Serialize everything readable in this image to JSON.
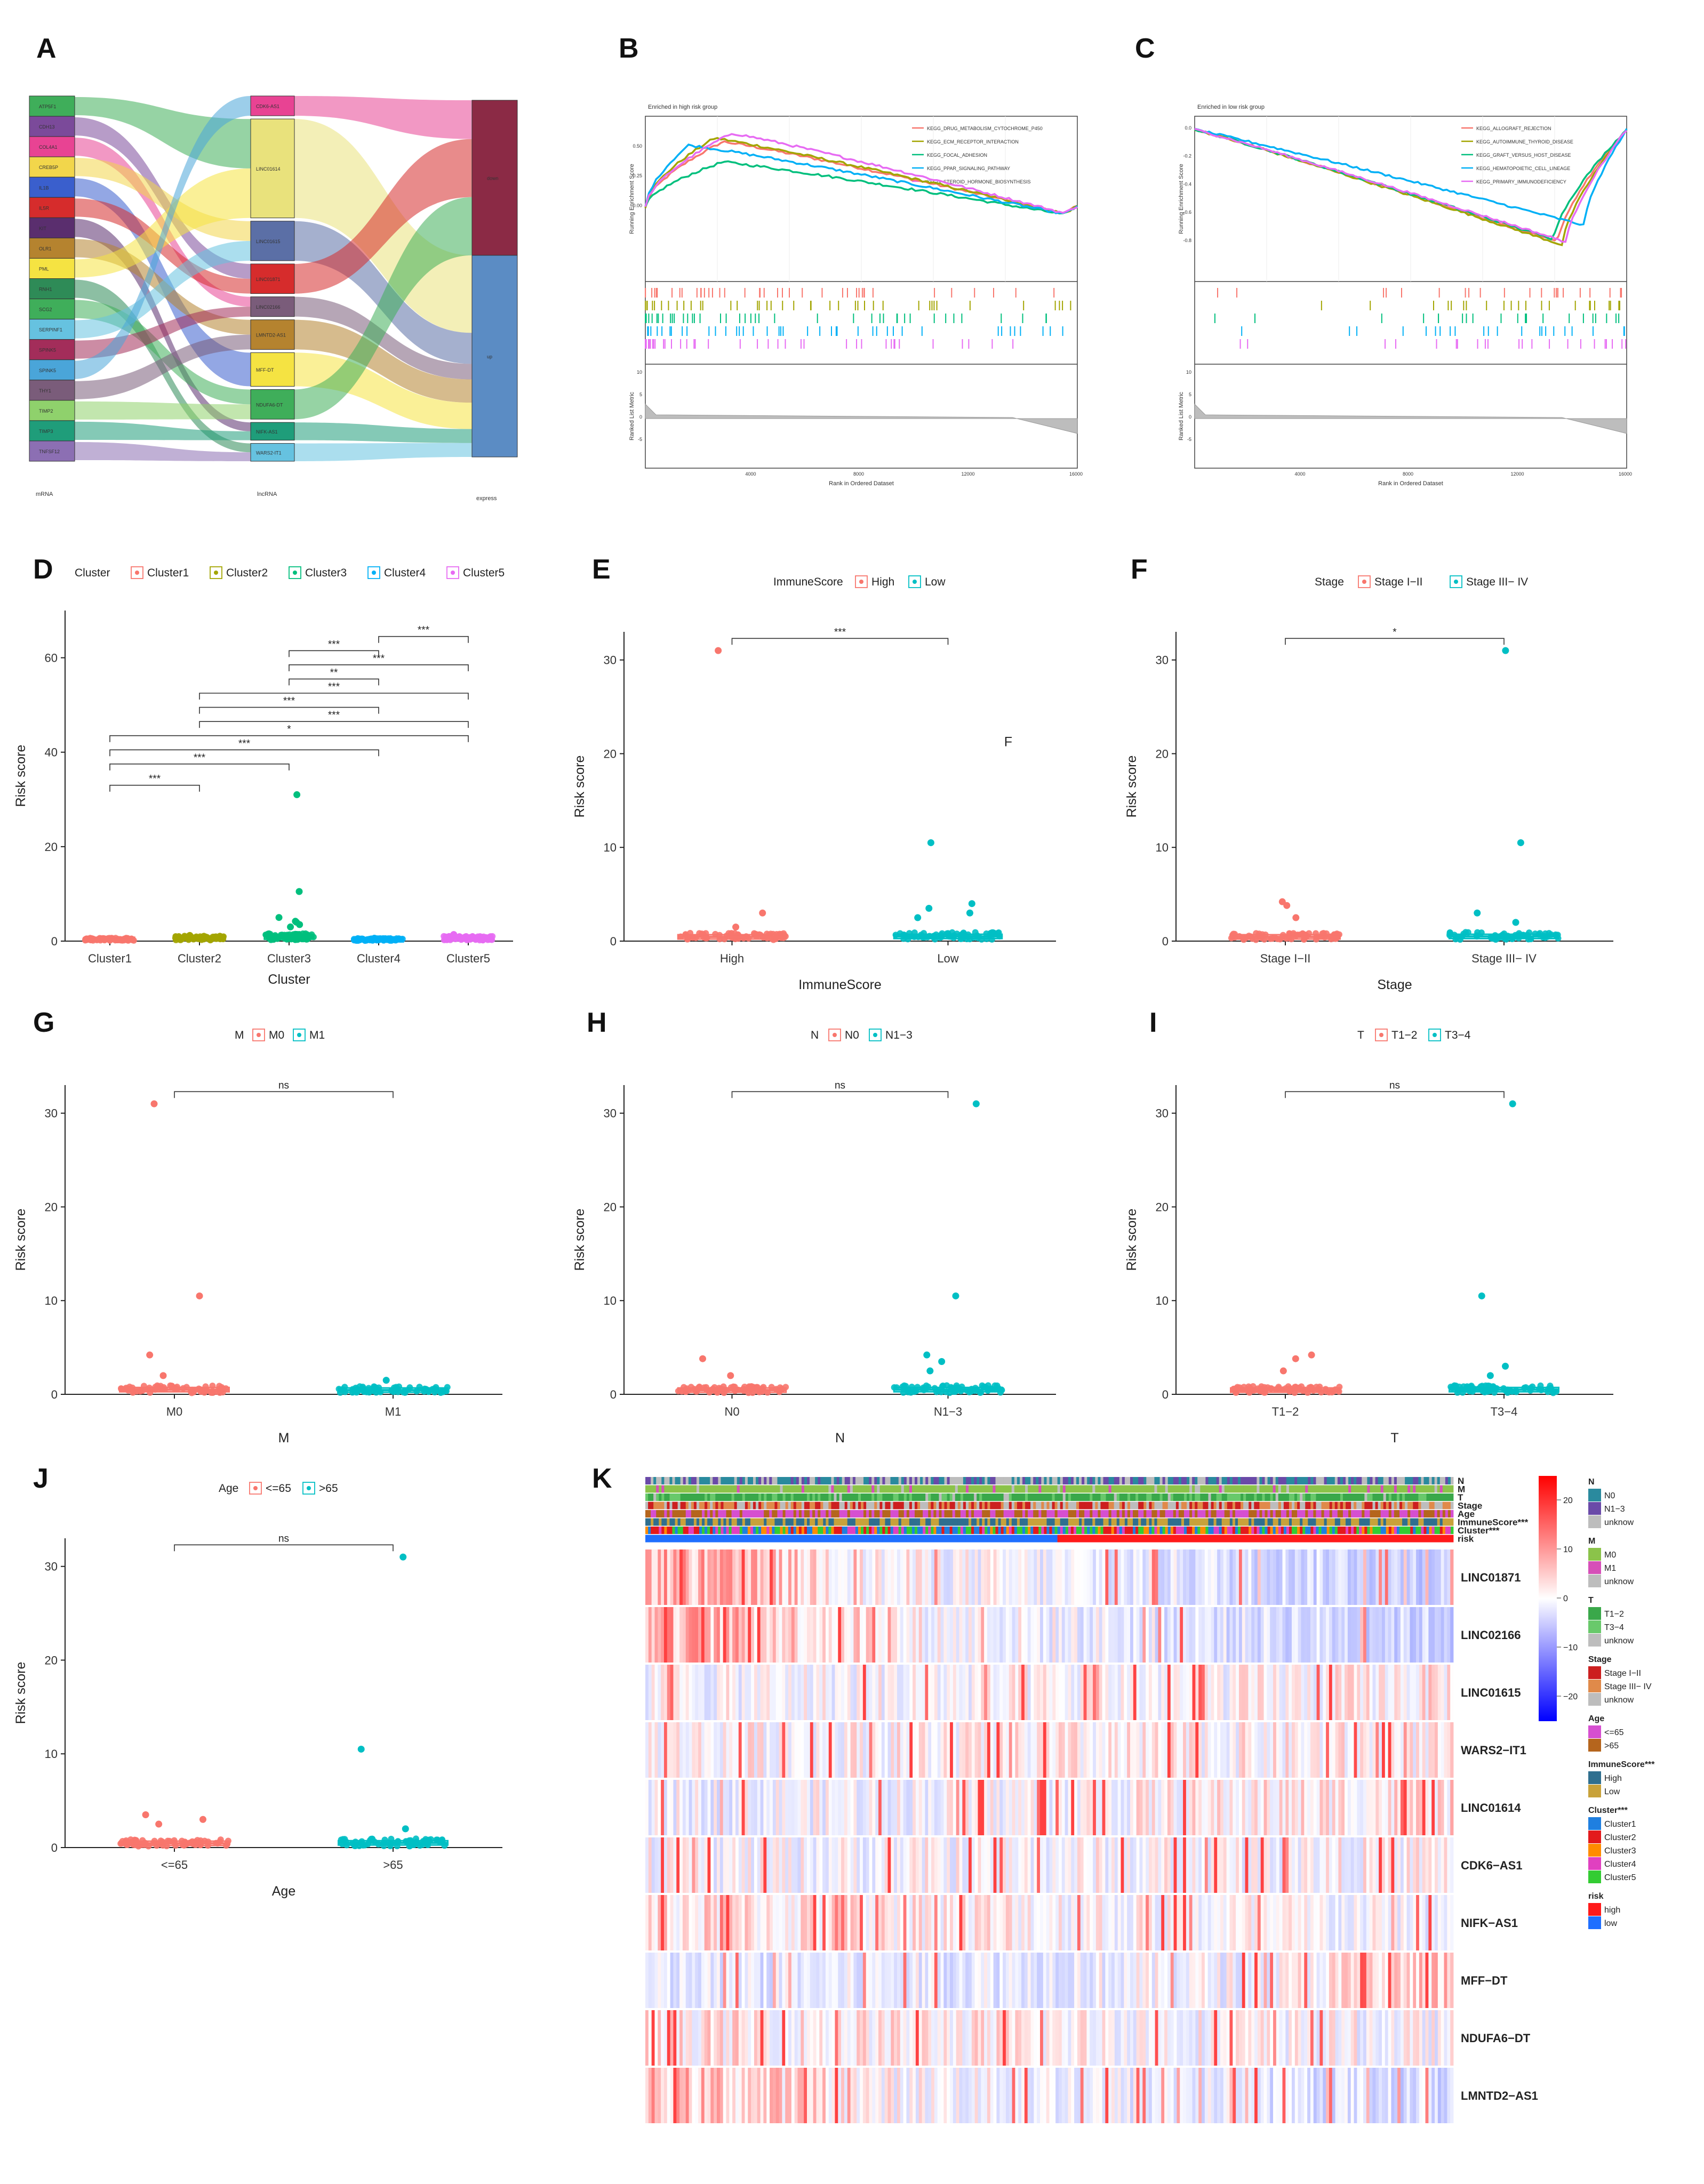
{
  "panel_letters": [
    "A",
    "B",
    "C",
    "D",
    "E",
    "F",
    "G",
    "H",
    "I",
    "J",
    "K"
  ],
  "colors": {
    "red": "#F8766D",
    "olive": "#A3A500",
    "green": "#00BF7D",
    "blue": "#00B0F6",
    "magenta": "#E76BF3",
    "teal": "#00BFC4"
  },
  "chart_data": [
    {
      "id": "A",
      "type": "sankey",
      "axis_labels": [
        "mRNA",
        "lncRNA",
        "express"
      ],
      "mrna": [
        {
          "name": "ATP5F1",
          "color": "#3fae5a"
        },
        {
          "name": "CDH13",
          "color": "#7b4a9a"
        },
        {
          "name": "COL4A1",
          "color": "#e84393"
        },
        {
          "name": "CREB5P",
          "color": "#f2d64b"
        },
        {
          "name": "IL1B",
          "color": "#3a5fcd"
        },
        {
          "name": "IL5R",
          "color": "#d62c2c"
        },
        {
          "name": "KIT",
          "color": "#5a2e6e"
        },
        {
          "name": "OLR1",
          "color": "#b5832f"
        },
        {
          "name": "PML",
          "color": "#f5e342"
        },
        {
          "name": "RNH1",
          "color": "#2e8b57"
        },
        {
          "name": "SCG2",
          "color": "#3fae5a"
        },
        {
          "name": "SERPINF1",
          "color": "#66c2e0"
        },
        {
          "name": "SPINK5",
          "color": "#a32d5a"
        },
        {
          "name": "SPINK5",
          "color": "#4aa5d9"
        },
        {
          "name": "THY1",
          "color": "#7a5c7a"
        },
        {
          "name": "TIMP2",
          "color": "#8fd16c"
        },
        {
          "name": "TIMP3",
          "color": "#1f9d7a"
        },
        {
          "name": "TNFSF12",
          "color": "#8c6fb3"
        }
      ],
      "lnc": [
        {
          "name": "CDK6-AS1",
          "color": "#e84393",
          "w": 1
        },
        {
          "name": "LINC01614",
          "color": "#e9e27c",
          "w": 5
        },
        {
          "name": "LINC01615",
          "color": "#5b6fa6",
          "w": 2
        },
        {
          "name": "LINC01871",
          "color": "#d62c2c",
          "w": 1.5
        },
        {
          "name": "LINC02166",
          "color": "#7a5c7a",
          "w": 1
        },
        {
          "name": "LMNTD2-AS1",
          "color": "#b5832f",
          "w": 1.5
        },
        {
          "name": "MFF-DT",
          "color": "#f5e342",
          "w": 1.7
        },
        {
          "name": "NDUFA6-DT",
          "color": "#3fae5a",
          "w": 1.5
        },
        {
          "name": "NIFK-AS1",
          "color": "#1f9d7a",
          "w": 0.9
        },
        {
          "name": "WARS2-IT1",
          "color": "#66c2e0",
          "w": 0.9
        }
      ],
      "express": [
        {
          "name": "down",
          "color": "#8b2a45",
          "w": 1
        },
        {
          "name": "up",
          "color": "#5b8cc4",
          "w": 1.3
        }
      ]
    },
    {
      "id": "B",
      "type": "line",
      "title": "Enriched in high risk group",
      "ylabel": "Running Enrichment Score",
      "ylabel2": "Ranked List Metric",
      "xlabel": "Rank in Ordered Dataset",
      "xticks": [
        "4000",
        "8000",
        "12000",
        "16000"
      ],
      "yticks": [
        "0.00",
        "0.25",
        "0.50"
      ],
      "yticks2": [
        "10",
        "5",
        "0",
        "-5"
      ],
      "series": [
        {
          "name": "KEGG_DRUG_METABOLISM_CYTOCHROME_P450",
          "color": "#F8766D",
          "peak": 0.55,
          "peakx": 0.18
        },
        {
          "name": "KEGG_ECM_RECEPTOR_INTERACTION",
          "color": "#A3A500",
          "peak": 0.58,
          "peakx": 0.16
        },
        {
          "name": "KEGG_FOCAL_ADHESION",
          "color": "#00BF7D",
          "peak": 0.38,
          "peakx": 0.18
        },
        {
          "name": "KEGG_PPAR_SIGNALING_PATHWAY",
          "color": "#00B0F6",
          "peak": 0.52,
          "peakx": 0.1
        },
        {
          "name": "KEGG_STEROID_HORMONE_BIOSYNTHESIS",
          "color": "#E76BF3",
          "peak": 0.62,
          "peakx": 0.2
        }
      ]
    },
    {
      "id": "C",
      "type": "line",
      "title": "Enriched in low risk group",
      "ylabel": "Running Enrichment Score",
      "ylabel2": "Ranked List Metric",
      "xlabel": "Rank in Ordered Dataset",
      "xticks": [
        "4000",
        "8000",
        "12000",
        "16000"
      ],
      "yticks": [
        "0.0",
        "-0.2",
        "-0.4",
        "-0.6",
        "-0.8"
      ],
      "yticks2": [
        "10",
        "5",
        "0",
        "-5"
      ],
      "series": [
        {
          "name": "KEGG_ALLOGRAFT_REJECTION",
          "color": "#F8766D",
          "min": -0.8,
          "minx": 0.84
        },
        {
          "name": "KEGG_AUTOIMMUNE_THYROID_DISEASE",
          "color": "#A3A500",
          "min": -0.82,
          "minx": 0.85
        },
        {
          "name": "KEGG_GRAFT_VERSUS_HOST_DISEASE",
          "color": "#00BF7D",
          "min": -0.78,
          "minx": 0.83
        },
        {
          "name": "KEGG_HEMATOPOIETIC_CELL_LINEAGE",
          "color": "#00B0F6",
          "min": -0.68,
          "minx": 0.9
        },
        {
          "name": "KEGG_PRIMARY_IMMUNODEFICIENCY",
          "color": "#E76BF3",
          "min": -0.8,
          "minx": 0.86
        }
      ]
    },
    {
      "id": "D",
      "type": "scatter",
      "legend_title": "Cluster",
      "xlabel": "Cluster",
      "ylabel": "Risk score",
      "categories": [
        "Cluster1",
        "Cluster2",
        "Cluster3",
        "Cluster4",
        "Cluster5"
      ],
      "colors": [
        "#F8766D",
        "#A3A500",
        "#00BF7D",
        "#00B0F6",
        "#E76BF3"
      ],
      "medians": [
        0.35,
        0.6,
        0.85,
        0.3,
        0.55
      ],
      "outliers": [
        [
          0.5
        ],
        [
          1.2
        ],
        [
          31,
          10.5,
          5,
          4.2,
          4,
          3.5,
          3
        ],
        [
          0.6
        ],
        [
          1.4
        ]
      ],
      "ylim": [
        0,
        70
      ],
      "yticks": [
        0,
        20,
        40,
        60
      ],
      "comparisons": [
        {
          "a": 4,
          "b": 5,
          "y": 64.5,
          "label": "***"
        },
        {
          "a": 3,
          "b": 4,
          "y": 61.5,
          "label": "***"
        },
        {
          "a": 3,
          "b": 5,
          "y": 58.5,
          "label": "***"
        },
        {
          "a": 3,
          "b": 4,
          "y": 55.5,
          "label": "**"
        },
        {
          "a": 2,
          "b": 5,
          "y": 52.5,
          "label": "***"
        },
        {
          "a": 2,
          "b": 4,
          "y": 49.5,
          "label": "***"
        },
        {
          "a": 2,
          "b": 5,
          "y": 46.5,
          "label": "***"
        },
        {
          "a": 1,
          "b": 5,
          "y": 43.5,
          "label": "*"
        },
        {
          "a": 1,
          "b": 4,
          "y": 40.5,
          "label": "***"
        },
        {
          "a": 1,
          "b": 3,
          "y": 37.5,
          "label": "***"
        },
        {
          "a": 1,
          "b": 2,
          "y": 33,
          "label": "***"
        }
      ]
    },
    {
      "id": "E",
      "type": "scatter",
      "legend_title": "ImmuneScore",
      "xlabel": "ImmuneScore",
      "ylabel": "Risk score",
      "categories": [
        "High",
        "Low"
      ],
      "colors": [
        "#F8766D",
        "#00BFC4"
      ],
      "medians": [
        0.45,
        0.5
      ],
      "outliers": [
        [
          31,
          3,
          1.5
        ],
        [
          10.5,
          4,
          3.5,
          3,
          2.5
        ]
      ],
      "ylim": [
        0,
        33
      ],
      "yticks": [
        0,
        10,
        20,
        30
      ],
      "comparisons": [
        {
          "a": 1,
          "b": 2,
          "y": 32.3,
          "label": "***"
        }
      ],
      "stray_text": "F"
    },
    {
      "id": "F",
      "type": "scatter",
      "legend_title": "Stage",
      "xlabel": "Stage",
      "ylabel": "Risk score",
      "categories": [
        "Stage I−II",
        "Stage III− IV"
      ],
      "colors": [
        "#F8766D",
        "#00BFC4"
      ],
      "medians": [
        0.45,
        0.5
      ],
      "outliers": [
        [
          4.2,
          3.8,
          2.5
        ],
        [
          31,
          10.5,
          3,
          2
        ]
      ],
      "ylim": [
        0,
        33
      ],
      "yticks": [
        0,
        10,
        20,
        30
      ],
      "comparisons": [
        {
          "a": 1,
          "b": 2,
          "y": 32.3,
          "label": "*"
        }
      ]
    },
    {
      "id": "G",
      "type": "scatter",
      "legend_title": "M",
      "xlabel": "M",
      "ylabel": "Risk score",
      "categories": [
        "M0",
        "M1"
      ],
      "colors": [
        "#F8766D",
        "#00BFC4"
      ],
      "medians": [
        0.5,
        0.45
      ],
      "outliers": [
        [
          31,
          10.5,
          4.2,
          2
        ],
        [
          1.5
        ]
      ],
      "ylim": [
        0,
        33
      ],
      "yticks": [
        0,
        10,
        20,
        30
      ],
      "comparisons": [
        {
          "a": 1,
          "b": 2,
          "y": 32.3,
          "label": "ns"
        }
      ]
    },
    {
      "id": "H",
      "type": "scatter",
      "legend_title": "N",
      "xlabel": "N",
      "ylabel": "Risk score",
      "categories": [
        "N0",
        "N1−3"
      ],
      "colors": [
        "#F8766D",
        "#00BFC4"
      ],
      "medians": [
        0.45,
        0.5
      ],
      "outliers": [
        [
          3.8,
          2
        ],
        [
          31,
          10.5,
          4.2,
          3.5,
          2.5
        ]
      ],
      "ylim": [
        0,
        33
      ],
      "yticks": [
        0,
        10,
        20,
        30
      ],
      "comparisons": [
        {
          "a": 1,
          "b": 2,
          "y": 32.3,
          "label": "ns"
        }
      ]
    },
    {
      "id": "I",
      "type": "scatter",
      "legend_title": "T",
      "xlabel": "T",
      "ylabel": "Risk score",
      "categories": [
        "T1−2",
        "T3−4"
      ],
      "colors": [
        "#F8766D",
        "#00BFC4"
      ],
      "medians": [
        0.45,
        0.5
      ],
      "outliers": [
        [
          4.2,
          3.8,
          2.5
        ],
        [
          31,
          10.5,
          3,
          2
        ]
      ],
      "ylim": [
        0,
        33
      ],
      "yticks": [
        0,
        10,
        20,
        30
      ],
      "comparisons": [
        {
          "a": 1,
          "b": 2,
          "y": 32.3,
          "label": "ns"
        }
      ]
    },
    {
      "id": "J",
      "type": "scatter",
      "legend_title": "Age",
      "xlabel": "Age",
      "ylabel": "Risk score",
      "categories": [
        "<=65",
        ">65"
      ],
      "colors": [
        "#F8766D",
        "#00BFC4"
      ],
      "medians": [
        0.45,
        0.5
      ],
      "outliers": [
        [
          3.5,
          3,
          2.5
        ],
        [
          31,
          10.5,
          2
        ]
      ],
      "ylim": [
        0,
        33
      ],
      "yticks": [
        0,
        10,
        20,
        30
      ],
      "comparisons": [
        {
          "a": 1,
          "b": 2,
          "y": 32.3,
          "label": "ns"
        }
      ]
    },
    {
      "id": "K",
      "type": "heatmap",
      "annotation_rows": [
        "N",
        "M",
        "T",
        "Stage",
        "Age",
        "ImmuneScore***",
        "Cluster***",
        "risk"
      ],
      "genes": [
        "LINC01871",
        "LINC02166",
        "LINC01615",
        "WARS2−IT1",
        "LINC01614",
        "CDK6−AS1",
        "NIFK−AS1",
        "MFF−DT",
        "NDUFA6−DT",
        "LMNTD2−AS1"
      ],
      "colorbar_ticks": [
        "20",
        "10",
        "0",
        "−10",
        "−20"
      ],
      "legend_groups": [
        {
          "title": "N",
          "items": [
            {
              "label": "N0",
              "color": "#2a8a9e"
            },
            {
              "label": "N1−3",
              "color": "#6a4aa8"
            },
            {
              "label": "unknow",
              "color": "#bdbdbd"
            }
          ]
        },
        {
          "title": "M",
          "items": [
            {
              "label": "M0",
              "color": "#8bc34a"
            },
            {
              "label": "M1",
              "color": "#d64fb8"
            },
            {
              "label": "unknow",
              "color": "#bdbdbd"
            }
          ]
        },
        {
          "title": "T",
          "items": [
            {
              "label": "T1−2",
              "color": "#3aa84a"
            },
            {
              "label": "T3−4",
              "color": "#69c96b"
            },
            {
              "label": "unknow",
              "color": "#bdbdbd"
            }
          ]
        },
        {
          "title": "Stage",
          "items": [
            {
              "label": "Stage I−II",
              "color": "#cc1f1f"
            },
            {
              "label": "Stage III− IV",
              "color": "#e08a4a"
            },
            {
              "label": "unknow",
              "color": "#bdbdbd"
            }
          ]
        },
        {
          "title": "Age",
          "items": [
            {
              "label": "<=65",
              "color": "#d64fd0"
            },
            {
              "label": ">65",
              "color": "#b5651d"
            }
          ]
        },
        {
          "title": "ImmuneScore***",
          "items": [
            {
              "label": "High",
              "color": "#2f6f8f"
            },
            {
              "label": "Low",
              "color": "#c8a23a"
            }
          ]
        },
        {
          "title": "Cluster***",
          "items": [
            {
              "label": "Cluster1",
              "color": "#1f7fe0"
            },
            {
              "label": "Cluster2",
              "color": "#e31a1c"
            },
            {
              "label": "Cluster3",
              "color": "#ff8c00"
            },
            {
              "label": "Cluster4",
              "color": "#e040c0"
            },
            {
              "label": "Cluster5",
              "color": "#33cc33"
            }
          ]
        },
        {
          "title": "risk",
          "items": [
            {
              "label": "high",
              "color": "#ff1a1a"
            },
            {
              "label": "low",
              "color": "#1f6fff"
            }
          ]
        }
      ]
    }
  ]
}
